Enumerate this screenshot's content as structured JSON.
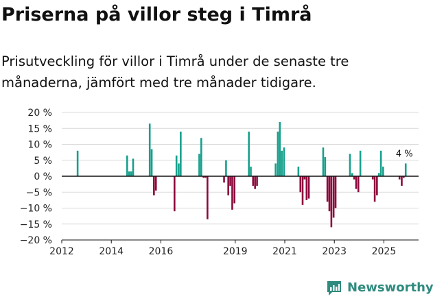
{
  "header": {
    "title": "Priserna på villor steg i Timrå",
    "subtitle": "Prisutveckling för villor i Timrå under de senaste tre månaderna, jämfört med tre månader tidigare."
  },
  "brand": {
    "name": "Newsworthy"
  },
  "colors": {
    "positive": "#17a08c",
    "negative": "#8c0a3c",
    "grid": "#d9d9d9",
    "axis": "#111111",
    "brand": "#2e8b7e"
  },
  "chart_data": {
    "type": "bar",
    "title": "Priserna på villor steg i Timrå",
    "xlabel": "",
    "ylabel": "",
    "ylim": [
      -20,
      20
    ],
    "xlim": [
      2012.0,
      2026.4
    ],
    "yticks": [
      20,
      15,
      10,
      5,
      0,
      -5,
      -10,
      -15,
      -20
    ],
    "ytick_labels": [
      "20 %",
      "15 %",
      "10 %",
      "5 %",
      "0 %",
      "−5 %",
      "−10 %",
      "−15 %",
      "−20 %"
    ],
    "xticks": [
      2012,
      2014,
      2016,
      2019,
      2021,
      2023,
      2025
    ],
    "xtick_labels": [
      "2012",
      "2014",
      "2016",
      "2019",
      "2021",
      "2023",
      "2025"
    ],
    "annotation": {
      "label": "4 %",
      "x": 2025.88,
      "y": 4
    },
    "series": [
      {
        "name": "Prisutveckling",
        "x": [
          2012.64,
          2014.64,
          2014.72,
          2014.8,
          2014.88,
          2015.55,
          2015.63,
          2015.72,
          2015.8,
          2016.55,
          2016.63,
          2016.72,
          2016.8,
          2017.55,
          2017.63,
          2017.72,
          2017.8,
          2017.88,
          2018.55,
          2018.63,
          2018.72,
          2018.8,
          2018.88,
          2018.97,
          2019.55,
          2019.63,
          2019.72,
          2019.8,
          2019.88,
          2020.63,
          2020.72,
          2020.8,
          2020.88,
          2020.97,
          2021.55,
          2021.63,
          2021.72,
          2021.8,
          2021.88,
          2021.97,
          2022.55,
          2022.63,
          2022.72,
          2022.8,
          2022.88,
          2022.97,
          2023.05,
          2023.63,
          2023.72,
          2023.8,
          2023.88,
          2023.97,
          2024.05,
          2024.55,
          2024.63,
          2024.72,
          2024.8,
          2024.88,
          2024.97,
          2025.63,
          2025.72,
          2025.8,
          2025.88
        ],
        "values": [
          8,
          6.5,
          1.5,
          1.5,
          5.5,
          16.5,
          8.5,
          -6,
          -4.5,
          -11,
          6.5,
          4,
          14,
          7,
          12,
          -0.5,
          -0.5,
          -13.5,
          -2,
          5,
          -6,
          -3,
          -10.5,
          -8.5,
          14,
          3,
          -3,
          -4,
          -3,
          4,
          14,
          17,
          8,
          9,
          3,
          -5,
          -9,
          -1,
          -7.5,
          -7,
          9,
          6,
          -8,
          -11,
          -16,
          -13,
          -10,
          7,
          1,
          -1,
          -4,
          -5,
          8,
          -1,
          -8,
          -6,
          1,
          8,
          3,
          -1,
          -3,
          -0.5,
          4
        ]
      }
    ]
  }
}
